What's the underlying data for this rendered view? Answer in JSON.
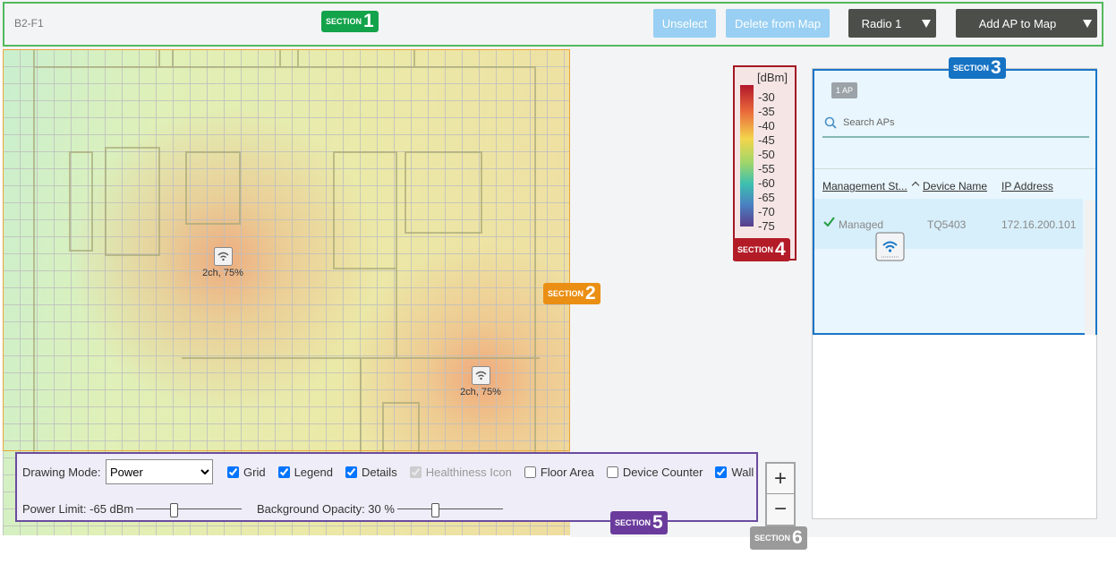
{
  "toolbar": {
    "floor": "B2-F1",
    "section": {
      "label": "SECTION",
      "number": "1"
    },
    "buttons": [
      "Unselect",
      "Delete from Map"
    ],
    "radio": "Radio 1",
    "add": "Add AP to Map"
  },
  "map": {
    "section": {
      "label": "SECTION",
      "number": "2"
    },
    "aps": [
      {
        "label": "2ch, 75%"
      },
      {
        "label": "2ch, 75%"
      }
    ]
  },
  "legend": {
    "unit": "[dBm]",
    "ticks": [
      -30,
      -35,
      -40,
      -45,
      -50,
      -55,
      -60,
      -65,
      -70,
      -75
    ],
    "section": {
      "label": "SECTION",
      "number": "4"
    }
  },
  "ap_list": {
    "section": {
      "label": "SECTION",
      "number": "3"
    },
    "count": "1 AP",
    "search_placeholder": "Search APs",
    "columns": [
      "Management St...",
      "Device Name",
      "IP Address"
    ],
    "rows": [
      [
        "Managed",
        "TQ5403",
        "172.16.200.101"
      ]
    ]
  },
  "controls": {
    "section": {
      "label": "SECTION",
      "number": "5"
    },
    "drawing_mode_label": "Drawing Mode:",
    "drawing_mode": "Power",
    "options": [
      {
        "label": "Grid",
        "checked": true
      },
      {
        "label": "Legend",
        "checked": true
      },
      {
        "label": "Details",
        "checked": true
      },
      {
        "label": "Healthiness Icon",
        "checked": true,
        "disabled": true
      },
      {
        "label": "Floor Area",
        "checked": false
      },
      {
        "label": "Device Counter",
        "checked": false
      },
      {
        "label": "Wall",
        "checked": true
      }
    ],
    "power_limit": "Power Limit: -65 dBm",
    "background_opacity": "Background Opacity: 30 %"
  },
  "zoom": {
    "section": {
      "label": "SECTION",
      "number": "6"
    },
    "zoom_in": "+",
    "zoom_out": "−"
  }
}
